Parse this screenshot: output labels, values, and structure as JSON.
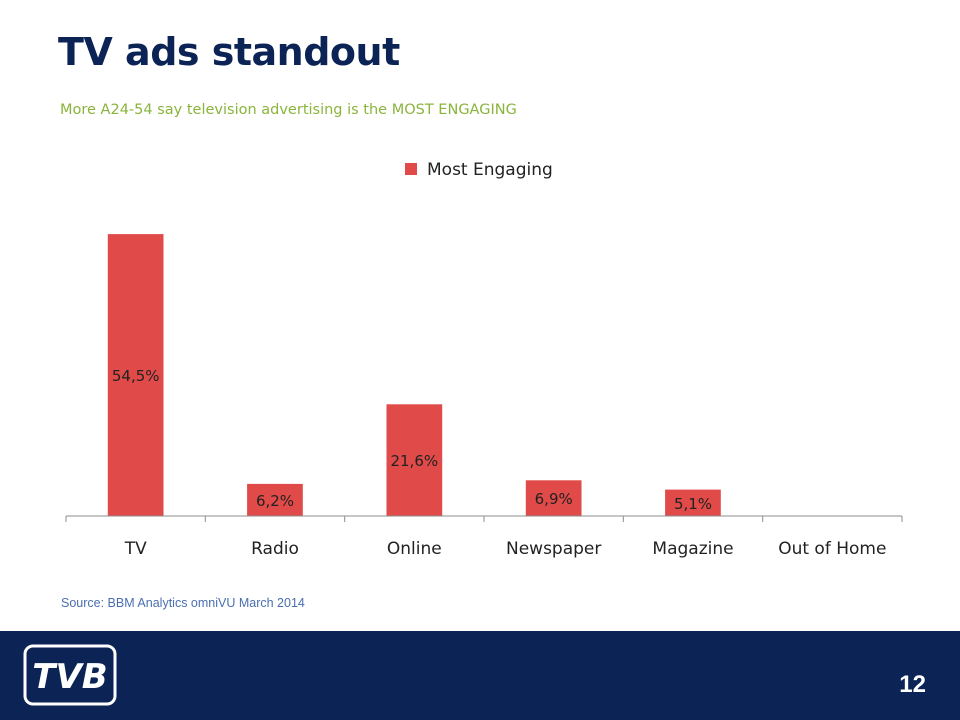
{
  "slide": {
    "title": "TV ads standout",
    "subtitle": "More A24-54 say television advertising is the MOST ENGAGING",
    "source": "Source: BBM Analytics omniVU March 2014",
    "page_number": "12",
    "logo_text": "TVB"
  },
  "colors": {
    "bar": "#e04a48",
    "title": "#0c2455",
    "subtitle": "#8ab43c",
    "footer": "#0c2455",
    "source": "#4a6fb0"
  },
  "chart_data": {
    "type": "bar",
    "categories": [
      "TV",
      "Radio",
      "Online",
      "Newspaper",
      "Magazine",
      "Out of Home"
    ],
    "series": [
      {
        "name": "Most Engaging",
        "values": [
          54.5,
          6.2,
          21.6,
          6.9,
          5.1,
          null
        ],
        "labels": [
          "54,5%",
          "6,2%",
          "21,6%",
          "6,9%",
          "5,1%",
          ""
        ]
      }
    ],
    "ylim": [
      0,
      58
    ],
    "grid": false,
    "legend": "top-center"
  }
}
